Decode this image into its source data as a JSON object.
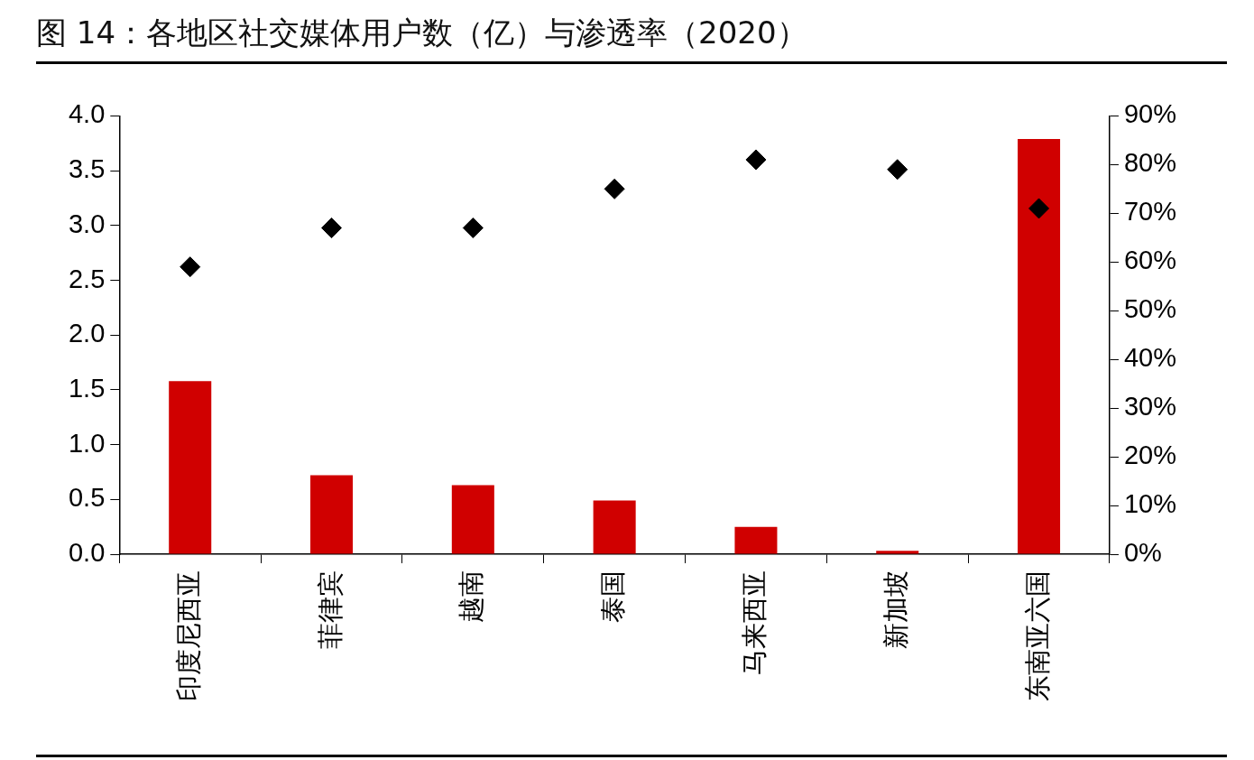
{
  "chart_data": {
    "type": "bar",
    "title": "图 14：各地区社交媒体用户数（亿）与渗透率（2020）",
    "categories": [
      "印度尼西亚",
      "菲律宾",
      "越南",
      "泰国",
      "马来西亚",
      "新加坡",
      "东南亚六国"
    ],
    "series": [
      {
        "color": "#d00000",
        "values": [
          1.58,
          0.72,
          0.63,
          0.49,
          0.25,
          0.03,
          3.79
        ]
      },
      {
        "type": "scatter",
        "axis": "y2",
        "color": "#000000",
        "marker": "diamond",
        "x": [
          "印度尼西亚",
          "菲律宾",
          "越南",
          "泰国",
          "马来西亚",
          "新加坡",
          "东南亚六国"
        ],
        "values": [
          59,
          67,
          67,
          75,
          81,
          79,
          71
        ]
      }
    ],
    "ylim": [
      0,
      4
    ],
    "yticks": [
      {
        "value": 0,
        "label": "0.0"
      },
      {
        "value": 0.5,
        "label": "0.5"
      },
      {
        "value": 1,
        "label": "1.0"
      },
      {
        "value": 1.5,
        "label": "1.5"
      },
      {
        "value": 2,
        "label": "2.0"
      },
      {
        "value": 2.5,
        "label": "2.5"
      },
      {
        "value": 3,
        "label": "3.0"
      },
      {
        "value": 3.5,
        "label": "3.5"
      },
      {
        "value": 4,
        "label": "4.0"
      }
    ],
    "y2lim": [
      0,
      90
    ],
    "y2ticks": [
      {
        "value": 0,
        "label": "0%"
      },
      {
        "value": 10,
        "label": "10%"
      },
      {
        "value": 20,
        "label": "20%"
      },
      {
        "value": 30,
        "label": "30%"
      },
      {
        "value": 40,
        "label": "40%"
      },
      {
        "value": 50,
        "label": "50%"
      },
      {
        "value": 60,
        "label": "60%"
      },
      {
        "value": 70,
        "label": "70%"
      },
      {
        "value": 80,
        "label": "80%"
      },
      {
        "value": 90,
        "label": "90%"
      }
    ],
    "grid": false,
    "legend": false
  }
}
